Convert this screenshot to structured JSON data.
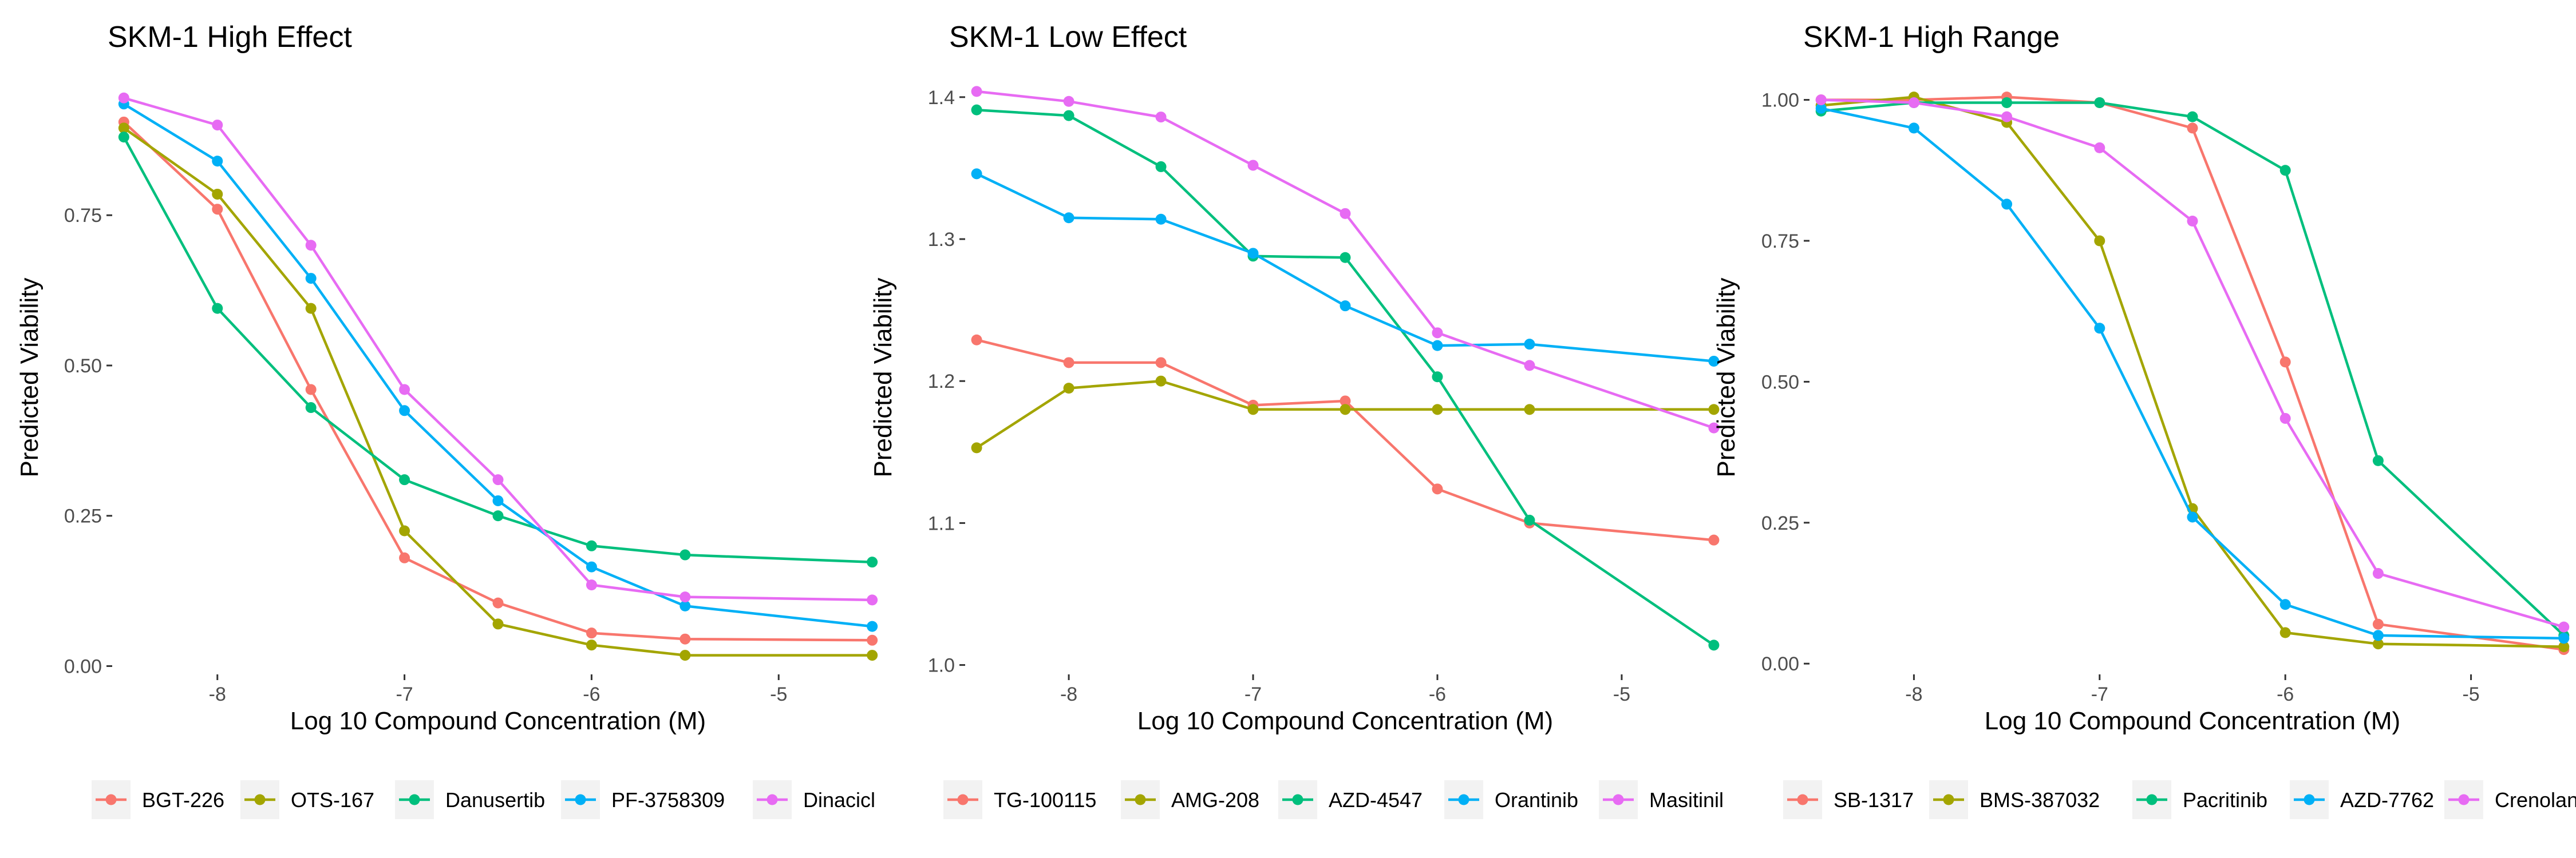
{
  "chart_data": [
    {
      "type": "line",
      "title": "SKM-1 High Effect",
      "xlabel": "Log 10 Compound Concentration (M)",
      "ylabel": "Predicted Viability",
      "x": [
        -8.5,
        -8.0,
        -7.5,
        -7.0,
        -6.5,
        -6.0,
        -5.5,
        -4.5
      ],
      "xticks": [
        -8,
        -7,
        -6,
        -5
      ],
      "xtick_labels": [
        "-8",
        "-7",
        "-6",
        "-5"
      ],
      "xlim": [
        -8.55,
        -4.45
      ],
      "ylim": [
        -0.01,
        0.97
      ],
      "yticks": [
        0.0,
        0.25,
        0.5,
        0.75
      ],
      "ytick_labels": [
        "0.00",
        "0.25",
        "0.50",
        "0.75"
      ],
      "grid": false,
      "legend_position": "bottom",
      "series": [
        {
          "name": "BGT-226",
          "color": "#F8766D",
          "values": [
            0.905,
            0.76,
            0.46,
            0.18,
            0.105,
            0.055,
            0.045,
            0.043
          ]
        },
        {
          "name": "OTS-167",
          "color": "#A3A500",
          "values": [
            0.895,
            0.785,
            0.595,
            0.225,
            0.07,
            0.035,
            0.018,
            0.018
          ]
        },
        {
          "name": "Danusertib",
          "color": "#00BF7D",
          "values": [
            0.88,
            0.595,
            0.43,
            0.31,
            0.25,
            0.2,
            0.185,
            0.173
          ]
        },
        {
          "name": "PF-3758309",
          "color": "#00B0F6",
          "values": [
            0.935,
            0.84,
            0.645,
            0.425,
            0.275,
            0.165,
            0.1,
            0.066
          ]
        },
        {
          "name": "Dinacicl",
          "color": "#E76BF3",
          "values": [
            0.945,
            0.9,
            0.7,
            0.46,
            0.31,
            0.135,
            0.115,
            0.11
          ]
        }
      ]
    },
    {
      "type": "line",
      "title": "SKM-1 Low Effect",
      "xlabel": "Log 10 Compound Concentration (M)",
      "ylabel": "Predicted Viability",
      "x": [
        -8.5,
        -8.0,
        -7.5,
        -7.0,
        -6.5,
        -6.0,
        -5.5,
        -4.5
      ],
      "xticks": [
        -8,
        -7,
        -6,
        -5
      ],
      "xtick_labels": [
        "-8",
        "-7",
        "-6",
        "-5"
      ],
      "xlim": [
        -8.55,
        -4.45
      ],
      "ylim": [
        0.995,
        1.41
      ],
      "yticks": [
        1.0,
        1.1,
        1.2,
        1.3,
        1.4
      ],
      "ytick_labels": [
        "1.0",
        "1.1",
        "1.2",
        "1.3",
        "1.4"
      ],
      "grid": false,
      "legend_position": "bottom",
      "series": [
        {
          "name": "TG-100115",
          "color": "#F8766D",
          "values": [
            1.229,
            1.213,
            1.213,
            1.183,
            1.186,
            1.124,
            1.1,
            1.088
          ]
        },
        {
          "name": "AMG-208",
          "color": "#A3A500",
          "values": [
            1.153,
            1.195,
            1.2,
            1.18,
            1.18,
            1.18,
            1.18,
            1.18
          ]
        },
        {
          "name": "AZD-4547",
          "color": "#00BF7D",
          "values": [
            1.391,
            1.387,
            1.351,
            1.288,
            1.287,
            1.203,
            1.102,
            1.014
          ]
        },
        {
          "name": "Orantinib",
          "color": "#00B0F6",
          "values": [
            1.346,
            1.315,
            1.314,
            1.29,
            1.253,
            1.225,
            1.226,
            1.214
          ]
        },
        {
          "name": "Masitinil",
          "color": "#E76BF3",
          "values": [
            1.404,
            1.397,
            1.386,
            1.352,
            1.318,
            1.234,
            1.211,
            1.167
          ]
        }
      ]
    },
    {
      "type": "line",
      "title": "SKM-1 High Range",
      "xlabel": "Log 10 Compound Concentration (M)",
      "ylabel": "Predicted Viability",
      "x": [
        -8.5,
        -8.0,
        -7.5,
        -7.0,
        -6.5,
        -6.0,
        -5.5,
        -4.5
      ],
      "xticks": [
        -8,
        -7,
        -6,
        -5
      ],
      "xtick_labels": [
        "-8",
        "-7",
        "-6",
        "-5"
      ],
      "xlim": [
        -8.55,
        -4.45
      ],
      "ylim": [
        -0.015,
        1.03
      ],
      "yticks": [
        0.0,
        0.25,
        0.5,
        0.75,
        1.0
      ],
      "ytick_labels": [
        "0.00",
        "0.25",
        "0.50",
        "0.75",
        "1.00"
      ],
      "grid": false,
      "legend_position": "bottom",
      "series": [
        {
          "name": "SB-1317",
          "color": "#F8766D",
          "values": [
            1.0,
            1.0,
            1.005,
            0.995,
            0.95,
            0.535,
            0.07,
            0.025
          ]
        },
        {
          "name": "BMS-387032",
          "color": "#A3A500",
          "values": [
            0.99,
            1.005,
            0.96,
            0.75,
            0.275,
            0.055,
            0.035,
            0.03
          ]
        },
        {
          "name": "Pacritinib",
          "color": "#00BF7D",
          "values": [
            0.98,
            0.995,
            0.995,
            0.995,
            0.97,
            0.875,
            0.36,
            0.05
          ]
        },
        {
          "name": "AZD-7762",
          "color": "#00B0F6",
          "values": [
            0.985,
            0.95,
            0.815,
            0.595,
            0.26,
            0.105,
            0.05,
            0.045
          ]
        },
        {
          "name": "Crenolanil",
          "color": "#E76BF3",
          "values": [
            1.0,
            0.995,
            0.97,
            0.915,
            0.785,
            0.435,
            0.16,
            0.065
          ]
        }
      ]
    }
  ]
}
